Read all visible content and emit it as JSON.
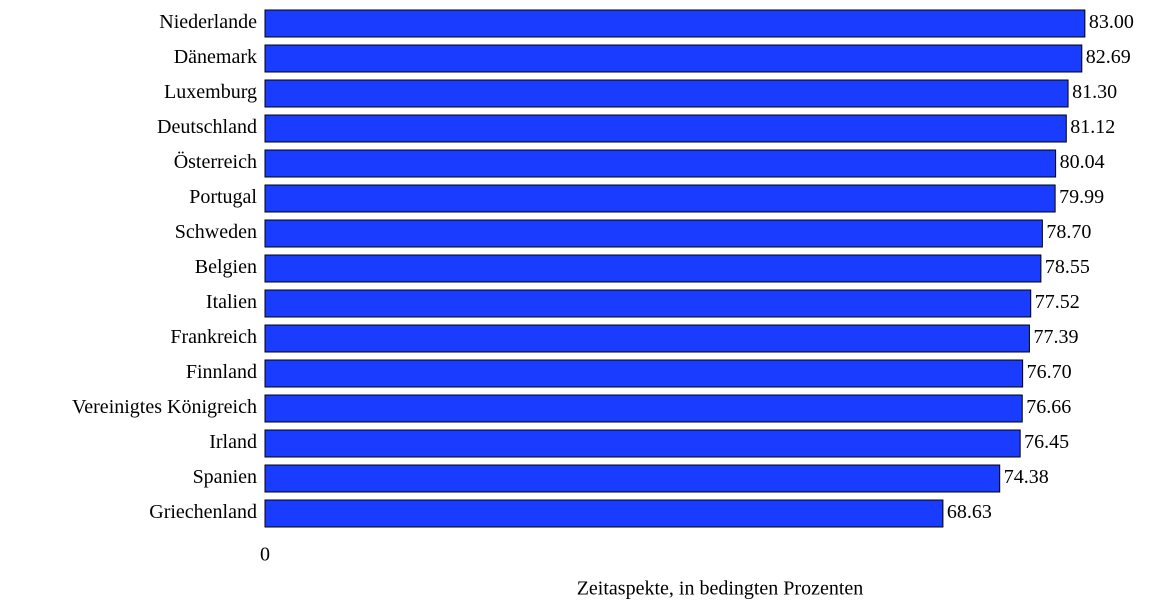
{
  "chart_data": {
    "type": "hbar",
    "categories": [
      "Niederlande",
      "Dänemark",
      "Luxemburg",
      "Deutschland",
      "Österreich",
      "Portugal",
      "Schweden",
      "Belgien",
      "Italien",
      "Frankreich",
      "Finnland",
      "Vereinigtes Königreich",
      "Irland",
      "Spanien",
      "Griechenland"
    ],
    "values": [
      83.0,
      82.69,
      81.3,
      81.12,
      80.04,
      79.99,
      78.7,
      78.55,
      77.52,
      77.39,
      76.7,
      76.66,
      76.45,
      74.38,
      68.63
    ],
    "value_labels": [
      "83.00",
      "82.69",
      "81.30",
      "81.12",
      "80.04",
      "79.99",
      "78.70",
      "78.55",
      "77.52",
      "77.39",
      "76.70",
      "76.66",
      "76.45",
      "74.38",
      "68.63"
    ],
    "color": "#1a3cff",
    "xlim": [
      0,
      90
    ],
    "xticks": [
      0
    ],
    "xlabel": "Zeitaspekte, in bedingten Prozenten"
  }
}
